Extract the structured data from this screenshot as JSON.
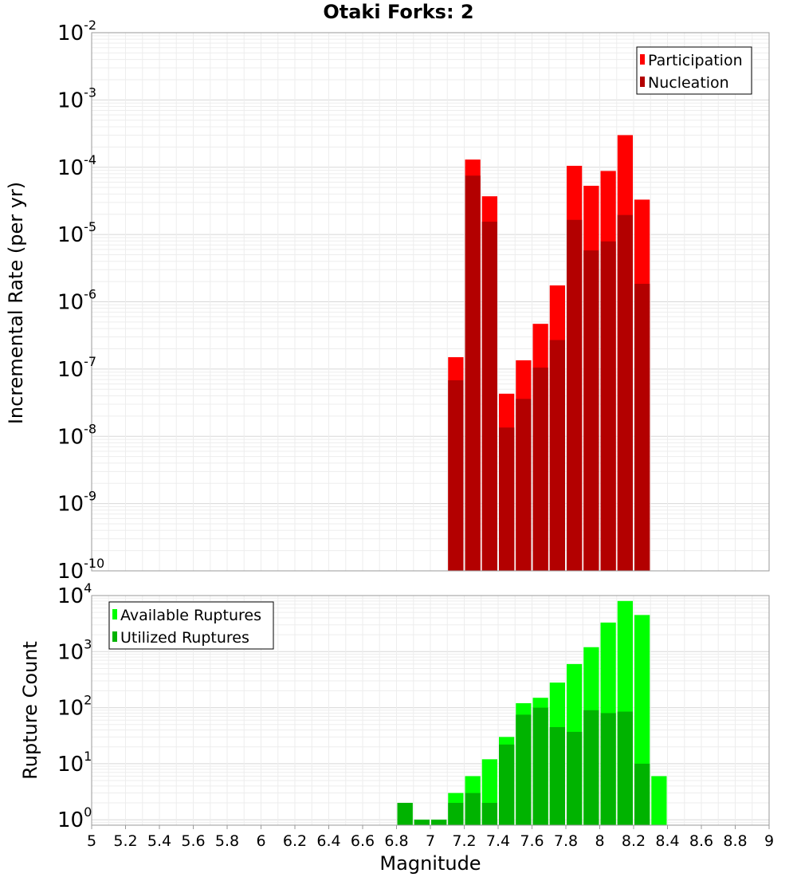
{
  "title": "Otaki Forks: 2",
  "chart_data": [
    {
      "type": "bar",
      "scale": "log",
      "ylabel": "Incremental Rate (per yr)",
      "ylim": [
        1e-10,
        0.01
      ],
      "yticks": [
        {
          "base": "10",
          "exp": "-10"
        },
        {
          "base": "10",
          "exp": "-9"
        },
        {
          "base": "10",
          "exp": "-8"
        },
        {
          "base": "10",
          "exp": "-7"
        },
        {
          "base": "10",
          "exp": "-6"
        },
        {
          "base": "10",
          "exp": "-5"
        },
        {
          "base": "10",
          "exp": "-4"
        },
        {
          "base": "10",
          "exp": "-3"
        },
        {
          "base": "10",
          "exp": "-2"
        }
      ],
      "xlim": [
        5,
        9
      ],
      "bin_width": 0.1,
      "grid": true,
      "legend_position": "top-right",
      "series": [
        {
          "name": "Participation",
          "color": "#ff0000",
          "x": [
            7.15,
            7.25,
            7.35,
            7.45,
            7.55,
            7.65,
            7.75,
            7.85,
            7.95,
            8.05,
            8.15,
            8.25
          ],
          "values": [
            1.5e-07,
            0.00013,
            3.7e-05,
            4.3e-08,
            1.35e-07,
            4.7e-07,
            1.75e-06,
            0.000105,
            5.3e-05,
            8.8e-05,
            0.0003,
            3.3e-05
          ]
        },
        {
          "name": "Nucleation",
          "color": "#b30000",
          "x": [
            7.15,
            7.25,
            7.35,
            7.45,
            7.55,
            7.65,
            7.75,
            7.85,
            7.95,
            8.05,
            8.15,
            8.25
          ],
          "values": [
            6.8e-08,
            7.5e-05,
            1.55e-05,
            1.35e-08,
            3.6e-08,
            1.05e-07,
            2.7e-07,
            1.65e-05,
            5.8e-06,
            7.9e-06,
            1.95e-05,
            1.85e-06
          ]
        }
      ]
    },
    {
      "type": "bar",
      "scale": "log",
      "ylabel": "Rupture Count",
      "xlabel": "Magnitude",
      "ylim": [
        0.8,
        10000
      ],
      "yticks": [
        {
          "base": "10",
          "exp": "0"
        },
        {
          "base": "10",
          "exp": "1"
        },
        {
          "base": "10",
          "exp": "2"
        },
        {
          "base": "10",
          "exp": "3"
        },
        {
          "base": "10",
          "exp": "4"
        }
      ],
      "xlim": [
        5,
        9
      ],
      "xticks": [
        "5",
        "5.2",
        "5.4",
        "5.6",
        "5.8",
        "6",
        "6.2",
        "6.4",
        "6.6",
        "6.8",
        "7",
        "7.2",
        "7.4",
        "7.6",
        "7.8",
        "8",
        "8.2",
        "8.4",
        "8.6",
        "8.8",
        "9"
      ],
      "bin_width": 0.1,
      "grid": true,
      "legend_position": "top-left",
      "series": [
        {
          "name": "Available Ruptures",
          "color": "#00ff00",
          "x": [
            6.85,
            6.95,
            7.05,
            7.15,
            7.25,
            7.35,
            7.45,
            7.55,
            7.65,
            7.75,
            7.85,
            7.95,
            8.05,
            8.15,
            8.25,
            8.35
          ],
          "values": [
            2,
            1,
            1,
            3,
            6,
            12,
            30,
            120,
            150,
            280,
            600,
            1200,
            3300,
            8000,
            4500,
            6
          ]
        },
        {
          "name": "Utilized Ruptures",
          "color": "#00b300",
          "x": [
            6.85,
            6.95,
            7.05,
            7.15,
            7.25,
            7.35,
            7.45,
            7.55,
            7.65,
            7.75,
            7.85,
            7.95,
            8.05,
            8.15,
            8.25
          ],
          "values": [
            2,
            1,
            1,
            2,
            3,
            2,
            22,
            75,
            100,
            45,
            37,
            90,
            80,
            85,
            10
          ]
        }
      ]
    }
  ]
}
